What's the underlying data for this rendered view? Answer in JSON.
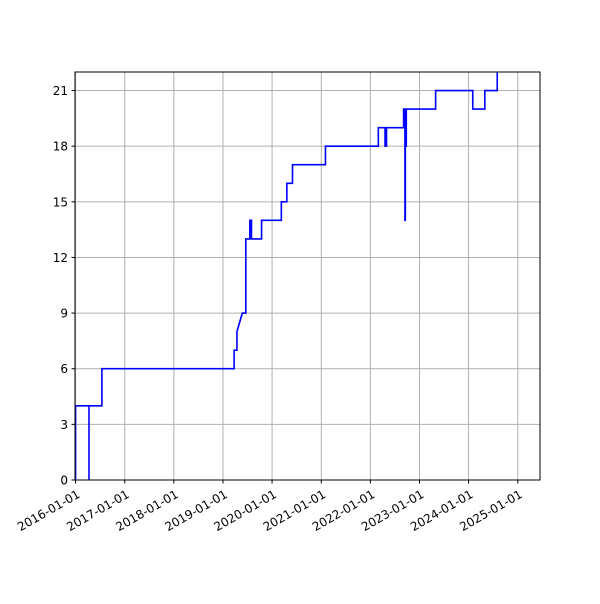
{
  "chart_data": {
    "type": "line",
    "title": "",
    "xlabel": "",
    "ylabel": "",
    "x_axis_type": "date",
    "xlim": [
      "2015-12-28",
      "2025-06-15"
    ],
    "ylim": [
      0,
      22
    ],
    "grid": true,
    "legend": "none",
    "line_style": "step",
    "colors": {
      "line": "#0000ff",
      "grid": "#b0b0b0",
      "axes": "#000000"
    },
    "x_ticks": [
      "2016-01-01",
      "2017-01-01",
      "2018-01-01",
      "2019-01-01",
      "2020-01-01",
      "2021-01-01",
      "2022-01-01",
      "2023-01-01",
      "2024-01-01",
      "2025-01-01"
    ],
    "y_ticks": [
      0,
      3,
      6,
      9,
      12,
      15,
      18,
      21
    ],
    "series": [
      {
        "x": [
          "2015-12-28",
          "2016-01-01",
          "2016-01-01",
          "2016-04-10",
          "2016-04-10",
          "2016-04-10",
          "2016-04-10",
          "2016-07-15",
          "2016-07-15",
          "2019-03-25",
          "2019-03-25",
          "2019-04-15",
          "2019-04-15",
          "2019-05-25",
          "2019-06-20",
          "2019-06-20",
          "2019-07-20",
          "2019-07-20",
          "2019-08-01",
          "2019-08-01",
          "2019-08-10",
          "2019-08-10",
          "2019-10-15",
          "2019-10-15",
          "2020-03-10",
          "2020-03-10",
          "2020-04-20",
          "2020-04-20",
          "2020-06-01",
          "2020-06-01",
          "2021-02-01",
          "2021-02-01",
          "2022-03-01",
          "2022-03-01",
          "2022-04-20",
          "2022-04-20",
          "2022-05-01",
          "2022-05-01",
          "2022-05-20",
          "2022-05-20",
          "2022-09-05",
          "2022-09-05",
          "2022-09-10",
          "2022-09-10",
          "2022-09-15",
          "2022-09-15",
          "2022-09-18",
          "2022-09-18",
          "2022-09-22",
          "2022-09-22",
          "2022-09-25",
          "2022-09-25",
          "2022-09-28",
          "2022-09-28",
          "2022-10-01",
          "2022-10-01",
          "2023-05-01",
          "2023-05-01",
          "2024-02-01",
          "2024-02-01",
          "2024-05-01",
          "2024-05-01",
          "2024-08-01",
          "2024-08-01"
        ],
        "y": [
          0,
          0,
          4,
          4,
          0,
          0,
          4,
          4,
          6,
          6,
          7,
          7,
          8,
          9,
          9,
          13,
          13,
          14,
          14,
          13,
          13,
          13,
          13,
          14,
          14,
          15,
          15,
          16,
          16,
          17,
          17,
          18,
          18,
          19,
          19,
          18,
          18,
          19,
          19,
          19,
          19,
          20,
          20,
          19,
          19,
          14,
          14,
          20,
          20,
          18,
          18,
          20,
          20,
          20,
          20,
          20,
          20,
          21,
          21,
          20,
          20,
          21,
          21,
          22
        ]
      }
    ]
  }
}
